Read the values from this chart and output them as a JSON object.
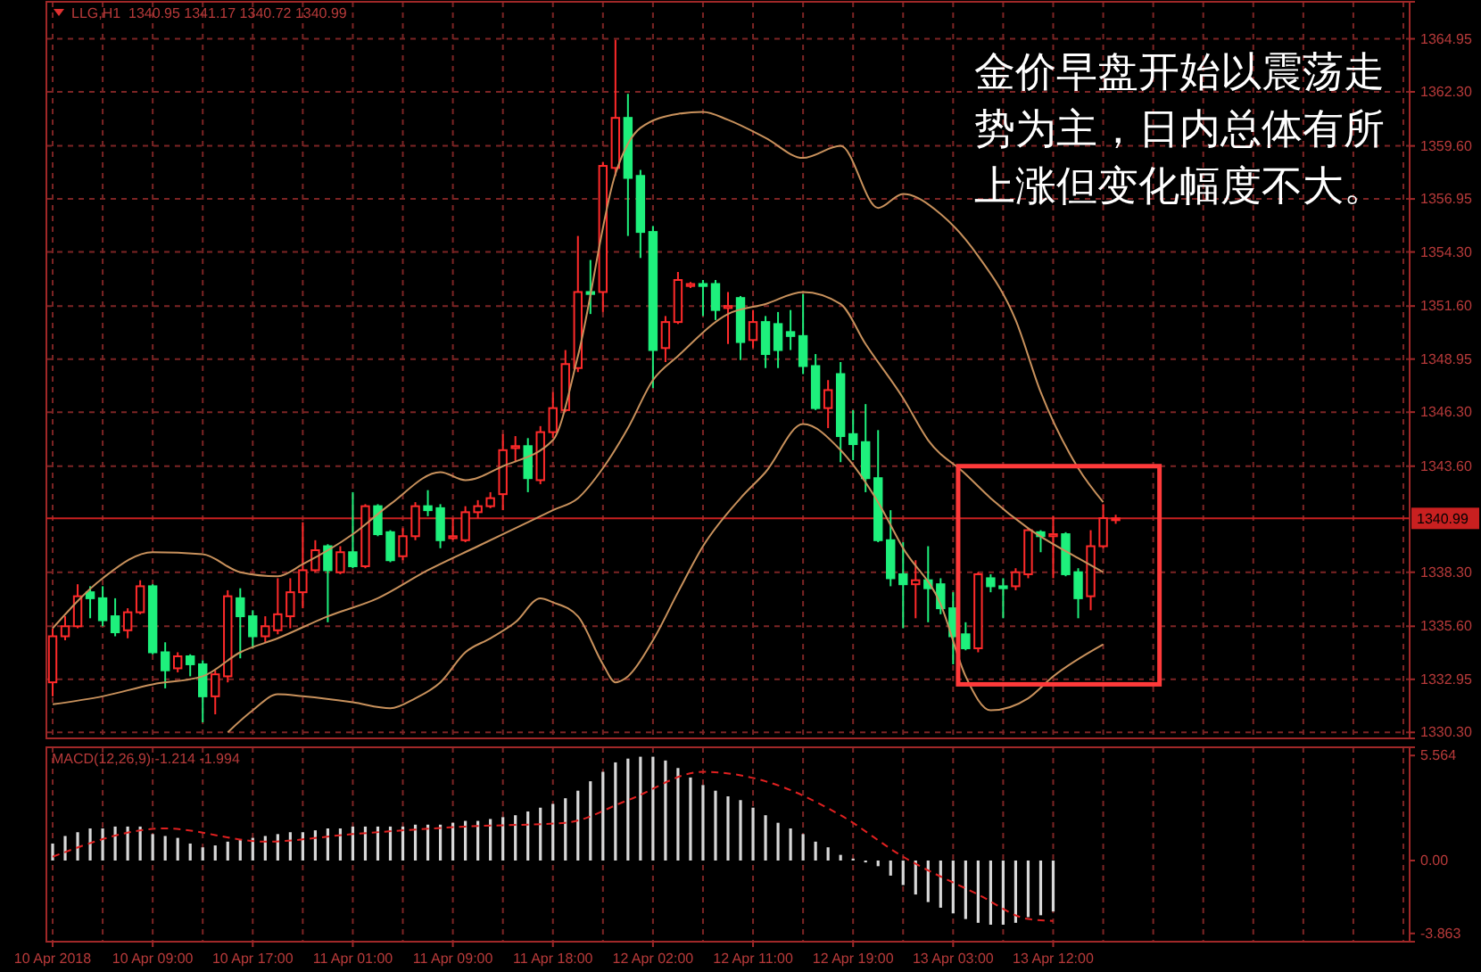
{
  "chart_data": [
    {
      "type": "candlestick",
      "title": "LLG,H1  1340.95 1341.17 1340.72 1340.99",
      "annotations": [
        "金价早盘开始以震荡走势为主，日内总体有所上涨但变化幅度不大。"
      ],
      "categories": [
        null,
        null,
        null,
        null,
        null,
        null,
        null,
        null,
        null,
        null,
        null,
        null,
        null,
        null,
        null,
        null,
        null,
        null,
        null,
        null,
        null,
        null,
        null,
        null,
        null,
        null,
        null,
        null,
        null,
        null,
        null,
        null,
        null,
        null,
        null,
        null,
        null,
        null,
        null,
        null,
        null,
        null,
        null,
        null,
        null,
        null,
        null,
        null,
        null,
        null,
        null,
        null,
        null,
        null,
        null,
        null,
        null,
        null,
        null,
        null,
        null,
        null,
        null,
        null,
        null,
        null,
        null,
        null,
        null,
        null,
        null,
        null,
        null,
        null,
        null,
        null,
        null,
        null,
        null,
        null,
        null,
        null,
        null,
        null,
        null,
        null,
        null,
        null,
        null,
        null,
        null,
        null,
        null,
        null,
        null,
        null,
        null,
        null,
        null,
        null,
        null,
        null,
        null,
        null,
        null,
        null,
        null,
        null,
        null
      ],
      "ohlc": [
        [
          1332.8,
          1335.5,
          1332.1,
          1335.1
        ],
        [
          1335.1,
          1336.1,
          1334.9,
          1335.6
        ],
        [
          1335.6,
          1337.7,
          1335.5,
          1337.1
        ],
        [
          1337.3,
          1337.6,
          1336.0,
          1337.0
        ],
        [
          1337.0,
          1337.6,
          1335.6,
          1335.9
        ],
        [
          1336.1,
          1337.0,
          1335.1,
          1335.3
        ],
        [
          1335.4,
          1336.5,
          1335.0,
          1336.3
        ],
        [
          1336.3,
          1337.9,
          1336.2,
          1337.6
        ],
        [
          1337.6,
          1337.7,
          1334.2,
          1334.3
        ],
        [
          1334.3,
          1334.8,
          1332.5,
          1333.4
        ],
        [
          1333.5,
          1334.3,
          1333.3,
          1334.1
        ],
        [
          1334.1,
          1334.2,
          1333.1,
          1333.7
        ],
        [
          1333.7,
          1333.9,
          1330.8,
          1332.1
        ],
        [
          1332.1,
          1333.4,
          1331.2,
          1333.2
        ],
        [
          1333.1,
          1337.4,
          1332.8,
          1337.1
        ],
        [
          1337.0,
          1337.5,
          1334.0,
          1336.1
        ],
        [
          1336.1,
          1336.4,
          1334.5,
          1335.1
        ],
        [
          1335.1,
          1336.1,
          1334.8,
          1335.6
        ],
        [
          1335.4,
          1338.0,
          1335.2,
          1336.2
        ],
        [
          1336.1,
          1338.0,
          1335.5,
          1337.3
        ],
        [
          1337.3,
          1340.8,
          1336.5,
          1338.4
        ],
        [
          1338.4,
          1339.9,
          1338.3,
          1339.4
        ],
        [
          1339.6,
          1339.7,
          1335.8,
          1338.4
        ],
        [
          1338.3,
          1339.6,
          1338.2,
          1339.3
        ],
        [
          1339.3,
          1342.3,
          1338.5,
          1338.6
        ],
        [
          1338.6,
          1341.7,
          1338.5,
          1341.6
        ],
        [
          1341.6,
          1341.7,
          1340.1,
          1340.2
        ],
        [
          1340.3,
          1340.4,
          1338.8,
          1338.9
        ],
        [
          1339.1,
          1340.5,
          1338.9,
          1340.1
        ],
        [
          1340.1,
          1341.8,
          1339.9,
          1341.6
        ],
        [
          1341.6,
          1342.4,
          1341.1,
          1341.4
        ],
        [
          1341.5,
          1341.7,
          1339.5,
          1339.9
        ],
        [
          1340.0,
          1341.0,
          1339.9,
          1340.1
        ],
        [
          1339.9,
          1341.6,
          1339.8,
          1341.3
        ],
        [
          1341.3,
          1341.9,
          1341.0,
          1341.6
        ],
        [
          1341.6,
          1342.3,
          1341.5,
          1342.0
        ],
        [
          1342.2,
          1345.2,
          1341.4,
          1344.4
        ],
        [
          1344.5,
          1345.1,
          1343.8,
          1344.6
        ],
        [
          1344.6,
          1345.0,
          1342.3,
          1343.0
        ],
        [
          1342.9,
          1345.6,
          1342.7,
          1345.3
        ],
        [
          1345.3,
          1347.3,
          1345.0,
          1346.5
        ],
        [
          1346.4,
          1349.4,
          1346.3,
          1348.7
        ],
        [
          1348.5,
          1355.1,
          1348.3,
          1352.3
        ],
        [
          1352.3,
          1353.9,
          1351.2,
          1352.2
        ],
        [
          1352.3,
          1358.8,
          1351.3,
          1358.6
        ],
        [
          1358.5,
          1364.9,
          1358.1,
          1361.0
        ],
        [
          1361.0,
          1362.2,
          1355.1,
          1358.0
        ],
        [
          1358.1,
          1358.4,
          1354.0,
          1355.3
        ],
        [
          1355.3,
          1355.6,
          1347.5,
          1349.4
        ],
        [
          1349.5,
          1351.1,
          1348.8,
          1350.8
        ],
        [
          1350.8,
          1353.3,
          1350.7,
          1352.9
        ],
        [
          1352.6,
          1352.8,
          1352.5,
          1352.7
        ],
        [
          1352.7,
          1352.9,
          1351.1,
          1352.6
        ],
        [
          1352.7,
          1352.9,
          1350.9,
          1351.4
        ],
        [
          1351.5,
          1352.3,
          1349.7,
          1351.6
        ],
        [
          1352.0,
          1352.1,
          1348.9,
          1349.8
        ],
        [
          1349.9,
          1351.4,
          1349.5,
          1350.8
        ],
        [
          1350.8,
          1351.1,
          1348.5,
          1349.2
        ],
        [
          1350.7,
          1351.3,
          1348.5,
          1349.4
        ],
        [
          1350.3,
          1351.4,
          1349.4,
          1350.1
        ],
        [
          1350.1,
          1352.2,
          1348.2,
          1348.6
        ],
        [
          1348.6,
          1349.2,
          1346.4,
          1346.5
        ],
        [
          1346.5,
          1347.9,
          1345.5,
          1347.4
        ],
        [
          1348.2,
          1348.8,
          1343.8,
          1345.1
        ],
        [
          1345.2,
          1346.4,
          1343.9,
          1344.7
        ],
        [
          1344.8,
          1346.7,
          1342.3,
          1343.0
        ],
        [
          1343.0,
          1345.4,
          1339.8,
          1339.9
        ],
        [
          1339.9,
          1341.4,
          1337.6,
          1338.0
        ],
        [
          1338.2,
          1339.8,
          1335.5,
          1337.7
        ],
        [
          1337.7,
          1338.9,
          1336.0,
          1337.9
        ],
        [
          1337.9,
          1339.6,
          1335.8,
          1337.5
        ],
        [
          1337.7,
          1338.0,
          1336.2,
          1336.5
        ],
        [
          1336.5,
          1337.3,
          1333.7,
          1335.1
        ],
        [
          1335.2,
          1335.8,
          1334.4,
          1334.5
        ],
        [
          1334.5,
          1338.3,
          1334.3,
          1338.2
        ],
        [
          1338.0,
          1338.2,
          1337.3,
          1337.6
        ],
        [
          1337.6,
          1338.0,
          1336.0,
          1337.5
        ],
        [
          1337.6,
          1338.5,
          1337.4,
          1338.3
        ],
        [
          1338.2,
          1340.5,
          1338.0,
          1340.4
        ],
        [
          1340.3,
          1340.4,
          1339.3,
          1340.1
        ],
        [
          1340.1,
          1341.1,
          1338.0,
          1340.2
        ],
        [
          1340.2,
          1340.3,
          1338.1,
          1338.2
        ],
        [
          1338.3,
          1338.5,
          1336.0,
          1337.0
        ],
        [
          1337.1,
          1340.4,
          1336.4,
          1339.6
        ],
        [
          1339.6,
          1341.7,
          1339.5,
          1341.0
        ],
        [
          1340.95,
          1341.17,
          1340.72,
          1340.99
        ],
        null,
        null,
        null,
        null,
        null,
        null,
        null,
        null,
        null,
        null,
        null,
        null,
        null,
        null,
        null,
        null,
        null,
        null,
        null,
        null,
        null,
        null,
        null
      ],
      "colors": [
        "#ff2a2a",
        "#ff2a2a",
        "#ff2a2a",
        "#1ef07c",
        "#1ef07c",
        "#1ef07c",
        "#ff2a2a",
        "#ff2a2a",
        "#1ef07c",
        "#1ef07c",
        "#ff2a2a",
        "#1ef07c",
        "#1ef07c",
        "#ff2a2a",
        "#ff2a2a",
        "#1ef07c",
        "#1ef07c",
        "#ff2a2a",
        "#ff2a2a",
        "#ff2a2a",
        "#ff2a2a",
        "#ff2a2a",
        "#1ef07c",
        "#ff2a2a",
        "#1ef07c",
        "#ff2a2a",
        "#1ef07c",
        "#1ef07c",
        "#ff2a2a",
        "#ff2a2a",
        "#1ef07c",
        "#1ef07c",
        "#ff2a2a",
        "#ff2a2a",
        "#ff2a2a",
        "#ff2a2a",
        "#ff2a2a",
        "#ff2a2a",
        "#1ef07c",
        "#ff2a2a",
        "#ff2a2a",
        "#ff2a2a",
        "#ff2a2a",
        "#1ef07c",
        "#ff2a2a",
        "#ff2a2a",
        "#1ef07c",
        "#1ef07c",
        "#1ef07c",
        "#ff2a2a",
        "#ff2a2a",
        "#ff2a2a",
        "#1ef07c",
        "#1ef07c",
        "#ff2a2a",
        "#1ef07c",
        "#ff2a2a",
        "#1ef07c",
        "#1ef07c",
        "#1ef07c",
        "#1ef07c",
        "#1ef07c",
        "#ff2a2a",
        "#1ef07c",
        "#1ef07c",
        "#1ef07c",
        "#1ef07c",
        "#1ef07c",
        "#1ef07c",
        "#ff2a2a",
        "#1ef07c",
        "#1ef07c",
        "#1ef07c",
        "#1ef07c",
        "#ff2a2a",
        "#1ef07c",
        "#1ef07c",
        "#ff2a2a",
        "#ff2a2a",
        "#1ef07c",
        "#ff2a2a",
        "#1ef07c",
        "#1ef07c",
        "#ff2a2a",
        "#ff2a2a",
        "#ff2a2a",
        null,
        null,
        null,
        null,
        null,
        null,
        null,
        null,
        null,
        null,
        null,
        null,
        null,
        null,
        null,
        null,
        null,
        null,
        null,
        null,
        null,
        null,
        null
      ],
      "series": [
        {
          "type": "line",
          "color": "#c8915c",
          "values": [
            1335.5,
            null,
            null,
            null,
            1338.0,
            null,
            null,
            null,
            1339.3,
            null,
            null,
            null,
            1339.2,
            null,
            null,
            1338.3,
            null,
            null,
            1338.1,
            null,
            1338.7,
            null,
            null,
            null,
            1340.2,
            null,
            null,
            1341.7,
            null,
            null,
            null,
            1343.3,
            null,
            1342.9,
            null,
            null,
            1343.6,
            null,
            null,
            null,
            1344.9,
            null,
            1349.1,
            null,
            null,
            1358.2,
            null,
            1360.5,
            null,
            null,
            1361.2,
            null,
            1361.3,
            null,
            1360.9,
            null,
            null,
            1360.0,
            null,
            null,
            1359.0,
            null,
            null,
            1359.6,
            null,
            null,
            1356.5,
            null,
            1357.2,
            null,
            null,
            1356.2,
            null,
            null,
            1354.1,
            null,
            null,
            1350.9,
            null,
            1347.3,
            null,
            null,
            1343.5,
            null,
            1341.8,
            null,
            null,
            null,
            null,
            null,
            null,
            null,
            null,
            null,
            null,
            null,
            null,
            null,
            null,
            null,
            null,
            null,
            null,
            null,
            null,
            null,
            null,
            null,
            null
          ]
        },
        {
          "type": "line",
          "color": "#c8915c",
          "values": [
            1331.7,
            null,
            null,
            null,
            1332.1,
            null,
            null,
            null,
            1332.7,
            null,
            null,
            null,
            1333.1,
            null,
            null,
            1334.3,
            null,
            null,
            1335.0,
            null,
            null,
            null,
            1336.1,
            null,
            null,
            null,
            1337.0,
            null,
            null,
            null,
            1338.4,
            null,
            null,
            null,
            1339.6,
            null,
            null,
            null,
            1340.8,
            null,
            1341.4,
            null,
            1342.0,
            null,
            1343.5,
            null,
            1345.5,
            null,
            1347.9,
            null,
            1349.1,
            null,
            null,
            null,
            1351.2,
            null,
            null,
            1351.7,
            null,
            null,
            1352.3,
            null,
            null,
            1351.7,
            null,
            1349.7,
            null,
            null,
            1347.0,
            null,
            1344.9,
            null,
            null,
            1343.2,
            null,
            1342.0,
            null,
            null,
            1340.5,
            null,
            null,
            null,
            1339.0,
            null,
            1338.3,
            null,
            null,
            null,
            null,
            null,
            null,
            null,
            null,
            null,
            null,
            null,
            null,
            null,
            null,
            null,
            null,
            null,
            null,
            null,
            null,
            null,
            null,
            null,
            null
          ]
        },
        {
          "type": "line",
          "color": "#c8915c",
          "values": [
            null,
            null,
            null,
            null,
            null,
            null,
            null,
            null,
            null,
            null,
            null,
            null,
            null,
            null,
            1330.3,
            null,
            1331.4,
            null,
            1332.2,
            null,
            1332.1,
            null,
            null,
            null,
            1331.8,
            null,
            null,
            1331.5,
            null,
            1332.0,
            null,
            1332.8,
            null,
            1334.3,
            null,
            1335.0,
            null,
            1335.8,
            null,
            1337.0,
            1336.8,
            null,
            1336.1,
            null,
            1333.7,
            1332.8,
            1333.1,
            null,
            1334.9,
            null,
            1337.3,
            null,
            1339.6,
            null,
            null,
            1342.0,
            null,
            1343.3,
            null,
            null,
            1345.7,
            null,
            null,
            1344.4,
            null,
            null,
            1341.8,
            null,
            1339.5,
            null,
            null,
            1336.7,
            null,
            1333.1,
            null,
            1331.4,
            null,
            null,
            1332.0,
            null,
            1333.1,
            null,
            null,
            null,
            1334.7,
            null,
            null,
            null,
            null,
            null,
            null,
            null,
            null,
            null,
            null,
            null,
            null,
            null,
            null,
            null,
            null,
            null,
            null,
            null,
            null,
            null,
            null,
            null,
            null
          ]
        }
      ],
      "ref_lines": [
        {
          "axis": "y",
          "value": 1340.99,
          "label": "1340.99",
          "color": "#c82020"
        }
      ],
      "ylim": [
        1330.0,
        1366.8
      ],
      "yticks": [
        1364.95,
        {
          "value": 1362.3,
          "label": "1362.30"
        },
        {
          "value": 1359.6,
          "label": "1359.60"
        },
        1356.95,
        {
          "value": 1354.3,
          "label": "1354.30"
        },
        {
          "value": 1351.6,
          "label": "1351.60"
        },
        1348.95,
        {
          "value": 1346.3,
          "label": "1346.30"
        },
        {
          "value": 1343.6,
          "label": "1343.60"
        },
        {
          "value": 1338.3,
          "label": "1338.30"
        },
        {
          "value": 1335.6,
          "label": "1335.60"
        },
        1332.95,
        {
          "value": 1330.3,
          "label": "1330.30"
        }
      ],
      "grid": true,
      "tick_labels": "y"
    },
    {
      "type": "bar",
      "title": "MACD(12,26,9) -1.214 -1.994",
      "categories": [
        "10 Apr 2018",
        null,
        null,
        null,
        null,
        null,
        null,
        null,
        "10 Apr 09:00",
        null,
        null,
        null,
        null,
        null,
        null,
        null,
        "10 Apr 17:00",
        null,
        null,
        null,
        null,
        null,
        null,
        null,
        "11 Apr 01:00",
        null,
        null,
        null,
        null,
        null,
        null,
        null,
        "11 Apr 09:00",
        null,
        null,
        null,
        null,
        null,
        null,
        null,
        "11 Apr 18:00",
        null,
        null,
        null,
        null,
        null,
        null,
        null,
        "12 Apr 02:00",
        null,
        null,
        null,
        null,
        null,
        null,
        null,
        "12 Apr 11:00",
        null,
        null,
        null,
        null,
        null,
        null,
        null,
        "12 Apr 19:00",
        null,
        null,
        null,
        null,
        null,
        null,
        null,
        "13 Apr 03:00",
        null,
        null,
        null,
        null,
        null,
        null,
        null,
        "13 Apr 12:00",
        null,
        null,
        null,
        null,
        null,
        null,
        null,
        null,
        null,
        null,
        null,
        null,
        null,
        null,
        null,
        null,
        null,
        null,
        null,
        null,
        null,
        null,
        null,
        null,
        null,
        null,
        null,
        null
      ],
      "series": [
        {
          "type": "bar",
          "color": "#d8d8d8",
          "values": [
            0.9,
            1.3,
            1.5,
            1.7,
            1.7,
            1.8,
            1.8,
            1.8,
            1.4,
            1.3,
            1.2,
            0.9,
            0.7,
            0.8,
            1.0,
            1.1,
            1.2,
            1.3,
            1.4,
            1.5,
            1.5,
            1.6,
            1.7,
            1.7,
            1.8,
            1.8,
            1.8,
            1.8,
            1.8,
            1.9,
            1.9,
            1.9,
            2.0,
            2.1,
            2.1,
            2.2,
            2.3,
            2.4,
            2.6,
            2.8,
            3.0,
            3.3,
            3.7,
            4.2,
            4.7,
            5.2,
            5.4,
            5.5,
            5.5,
            5.3,
            4.9,
            4.4,
            4.0,
            3.7,
            3.4,
            3.2,
            2.8,
            2.4,
            2.0,
            1.7,
            1.4,
            1.0,
            0.7,
            0.3,
            0.1,
            -0.1,
            -0.3,
            -0.8,
            -1.3,
            -1.8,
            -2.2,
            -2.5,
            -2.8,
            -3.1,
            -3.3,
            -3.4,
            -3.4,
            -3.3,
            -3.0,
            -2.9,
            -2.7,
            null,
            null,
            null,
            null,
            null,
            null,
            null,
            null,
            null,
            null,
            null,
            null,
            null,
            null,
            null,
            null,
            null,
            null,
            null,
            null,
            null,
            null,
            null,
            null,
            null,
            null,
            null,
            null
          ]
        },
        {
          "type": "line",
          "color": "#e02020",
          "line_style": "dashed",
          "values": [
            0.2,
            null,
            null,
            null,
            null,
            null,
            null,
            null,
            null,
            1.7,
            null,
            null,
            null,
            null,
            null,
            null,
            null,
            1.0,
            null,
            null,
            null,
            null,
            null,
            null,
            1.4,
            null,
            null,
            null,
            null,
            null,
            null,
            null,
            null,
            1.8,
            null,
            null,
            null,
            null,
            null,
            null,
            null,
            2.0,
            null,
            null,
            null,
            null,
            3.2,
            null,
            null,
            null,
            null,
            null,
            4.7,
            null,
            null,
            null,
            null,
            4.2,
            null,
            null,
            null,
            null,
            null,
            2.4,
            null,
            null,
            null,
            null,
            0.2,
            null,
            null,
            null,
            null,
            null,
            -1.8,
            null,
            null,
            null,
            -3.1,
            null,
            -3.2,
            null,
            null,
            null,
            null,
            null,
            null,
            null,
            null,
            null,
            null,
            null,
            null,
            null,
            null,
            null,
            null,
            null,
            null,
            null,
            null,
            null,
            null,
            null,
            null,
            null,
            null,
            null,
            null
          ]
        }
      ],
      "ylim": [
        -4.3,
        6.0
      ],
      "yticks": [
        5.564,
        {
          "value": 0,
          "label": "0.00"
        },
        -3.863
      ],
      "grid": "x"
    }
  ]
}
